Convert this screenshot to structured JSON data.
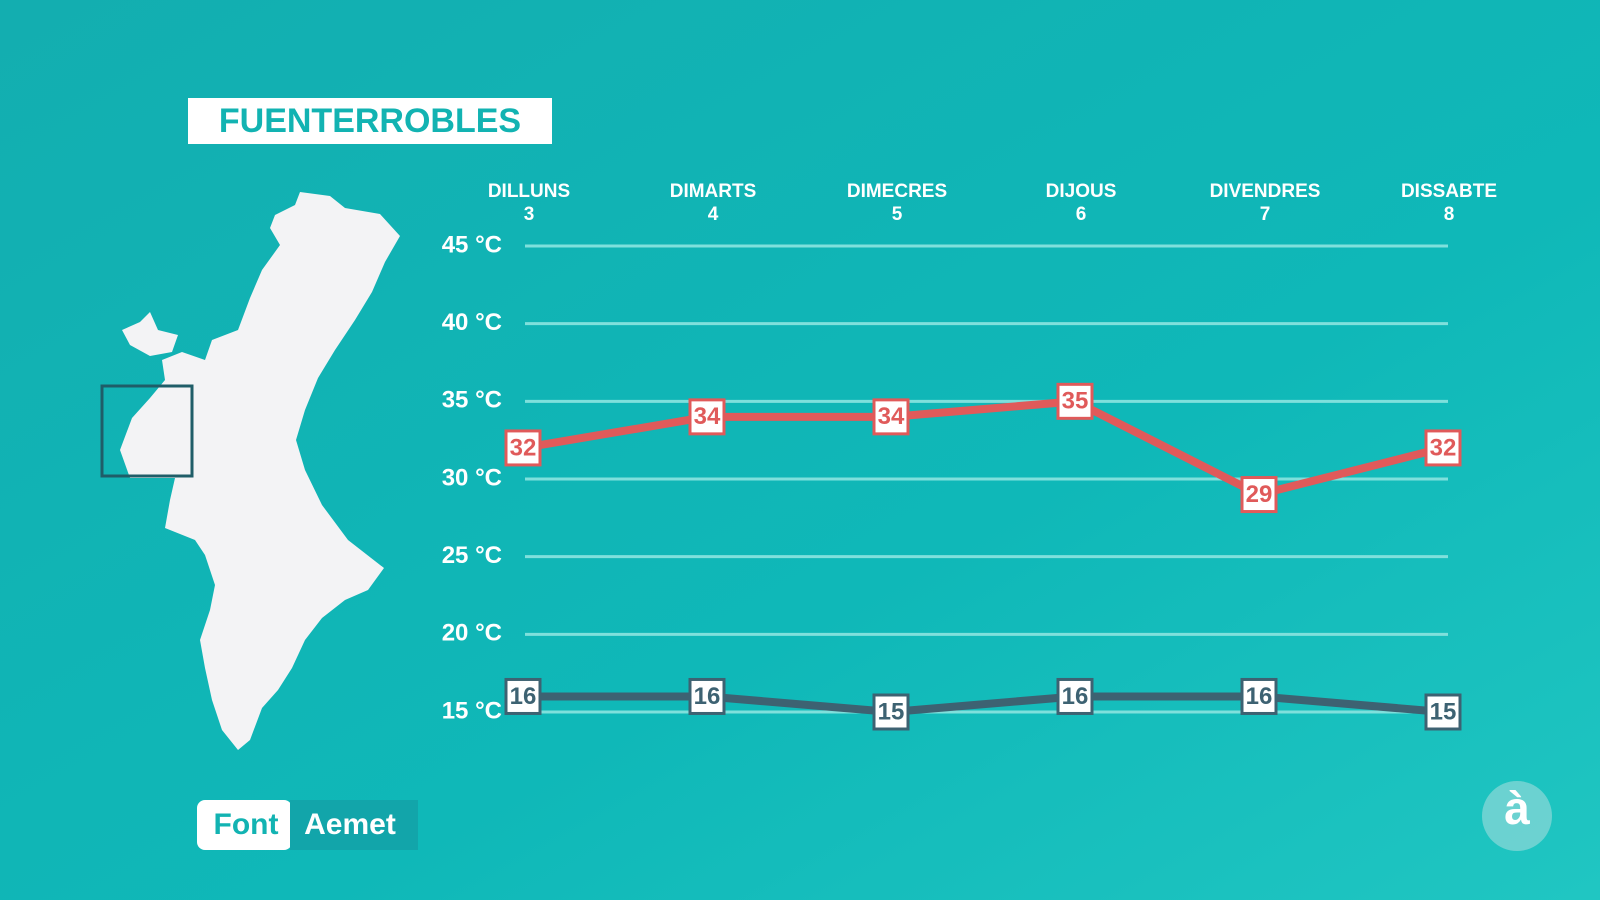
{
  "chart_data": {
    "type": "line",
    "title": "FUENTERROBLES",
    "categories": [
      "DILLUNS",
      "DIMARTS",
      "DIMECRES",
      "DIJOUS",
      "DIVENDRES",
      "DISSABTE"
    ],
    "dates": [
      3,
      4,
      5,
      6,
      7,
      8
    ],
    "series": [
      {
        "color": "#e05a5a",
        "values": [
          32,
          34,
          34,
          35,
          29,
          32
        ]
      },
      {
        "color": "#3d6272",
        "values": [
          16,
          16,
          15,
          16,
          16,
          15
        ]
      }
    ],
    "ylim": [
      15,
      45
    ],
    "yticks": [
      {
        "value": 15,
        "label": "15 °C"
      },
      {
        "value": 20,
        "label": "20 °C"
      },
      {
        "value": 25,
        "label": "25 °C"
      },
      {
        "value": 30,
        "label": "30 °C"
      },
      {
        "value": 35,
        "label": "35 °C"
      },
      {
        "value": 40,
        "label": "40 °C"
      },
      {
        "value": 45,
        "label": "45 °C"
      }
    ],
    "grid": true,
    "source_label": "Font",
    "source": "Aemet",
    "logo": "à"
  }
}
